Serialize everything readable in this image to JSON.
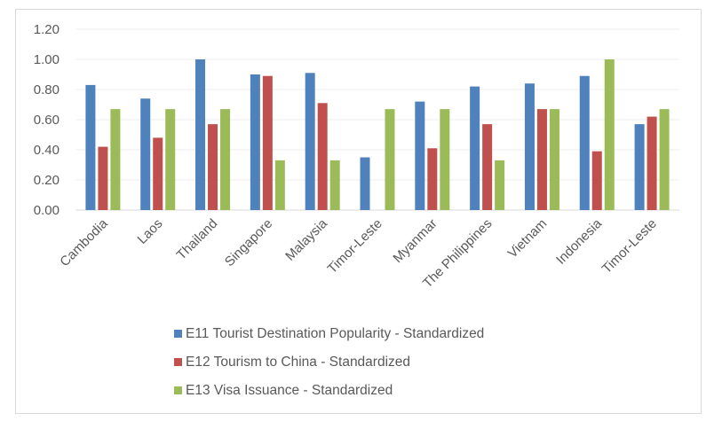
{
  "chart_data": {
    "type": "bar",
    "title": "",
    "xlabel": "",
    "ylabel": "",
    "ylim": [
      0,
      1.2
    ],
    "yticks": [
      "0.00",
      "0.20",
      "0.40",
      "0.60",
      "0.80",
      "1.00",
      "1.20"
    ],
    "grid": true,
    "legend_position": "bottom",
    "categories": [
      "Cambodia",
      "Laos",
      "Thailand",
      "Singapore",
      "Malaysia",
      "Timor-Leste",
      "Myanmar",
      "The Philippines",
      "Vietnam",
      "Indonesia",
      "Timor-Leste"
    ],
    "series": [
      {
        "name": "E11 Tourist Destination Popularity - Standardized",
        "color": "#4f81bd",
        "values": [
          0.83,
          0.74,
          1.0,
          0.9,
          0.91,
          0.35,
          0.72,
          0.82,
          0.84,
          0.89,
          0.57
        ]
      },
      {
        "name": "E12 Tourism to China - Standardized",
        "color": "#c0504d",
        "values": [
          0.42,
          0.48,
          0.57,
          0.89,
          0.71,
          0.0,
          0.41,
          0.57,
          0.67,
          0.39,
          0.62
        ]
      },
      {
        "name": "E13 Visa Issuance - Standardized",
        "color": "#9bbb59",
        "values": [
          0.67,
          0.67,
          0.67,
          0.33,
          0.33,
          0.67,
          0.67,
          0.33,
          0.67,
          1.0,
          0.67
        ]
      }
    ]
  }
}
